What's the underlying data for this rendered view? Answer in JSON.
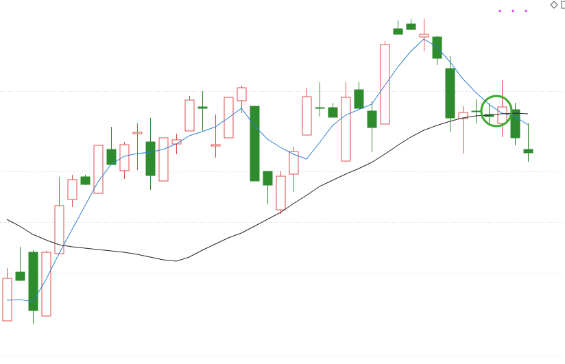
{
  "chart_data": {
    "type": "candlestick",
    "ylim": [
      0,
      531
    ],
    "yticks": [
      11,
      133,
      207,
      281,
      398
    ],
    "grid": true,
    "up_color": "#e04b4b",
    "down_color": "#2e8b2e",
    "open": [
      63,
      134,
      163,
      70,
      161,
      240,
      273,
      249,
      313,
      282,
      336,
      324,
      267,
      321,
      340,
      375,
      318,
      330,
      384,
      376,
      281,
      225,
      277,
      334,
      374,
      374,
      296,
      400,
      369,
      350,
      489,
      496,
      477,
      477,
      431,
      358,
      369,
      364,
      351,
      371,
      313
    ],
    "high": [
      140,
      171,
      166,
      165,
      273,
      276,
      276,
      319,
      346,
      324,
      351,
      359,
      330,
      336,
      391,
      398,
      364,
      389,
      406,
      376,
      281,
      281,
      317,
      403,
      411,
      381,
      411,
      411,
      383,
      471,
      501,
      503,
      504,
      479,
      449,
      376,
      386,
      381,
      414,
      381,
      351
    ],
    "low": [
      63,
      121,
      58,
      70,
      161,
      229,
      261,
      249,
      291,
      270,
      283,
      254,
      267,
      306,
      340,
      340,
      301,
      330,
      366,
      267,
      233,
      219,
      251,
      334,
      361,
      360,
      296,
      373,
      309,
      350,
      481,
      488,
      456,
      436,
      339,
      307,
      351,
      349,
      331,
      319,
      295
    ],
    "close": [
      125,
      122,
      78,
      163,
      231,
      269,
      262,
      319,
      291,
      320,
      338,
      275,
      330,
      327,
      385,
      373,
      320,
      389,
      403,
      267,
      261,
      274,
      310,
      390,
      373,
      360,
      389,
      373,
      345,
      466,
      481,
      488,
      481,
      446,
      359,
      367,
      368,
      361,
      375,
      330,
      308
    ],
    "lines": [
      {
        "color": "#2a7fd4",
        "values": [
          93,
          94,
          91,
          123,
          161,
          196,
          231,
          266,
          291,
          303,
          307,
          309,
          313,
          321,
          333,
          339,
          346,
          359,
          373,
          348,
          328,
          316,
          306,
          299,
          323,
          348,
          363,
          371,
          379,
          406,
          433,
          456,
          474,
          463,
          441,
          416,
          396,
          379,
          366,
          361,
          349
        ]
      },
      {
        "color": "#222222",
        "values": [
          211,
          201,
          189,
          181,
          174,
          171,
          169,
          167,
          165,
          163,
          160,
          156,
          152,
          150,
          156,
          166,
          175,
          184,
          191,
          201,
          211,
          221,
          234,
          246,
          259,
          268,
          277,
          285,
          294,
          306,
          319,
          331,
          341,
          348,
          354,
          359,
          362,
          363,
          365,
          366,
          365
        ]
      }
    ]
  }
}
